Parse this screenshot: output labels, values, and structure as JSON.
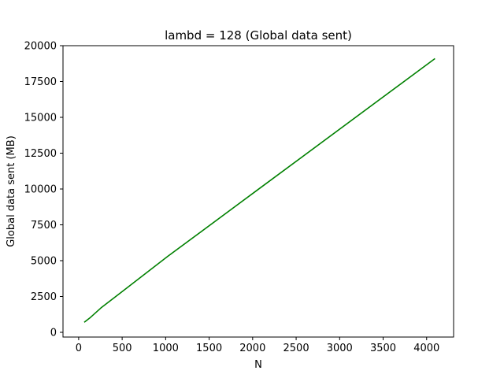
{
  "chart_data": {
    "type": "line",
    "title": "lambd = 128 (Global data sent)",
    "xlabel": "N",
    "ylabel": "Global data sent (MB)",
    "xlim": [
      -180,
      4310
    ],
    "ylim": [
      -330,
      20000
    ],
    "xticks": [
      0,
      500,
      1000,
      1500,
      2000,
      2500,
      3000,
      3500,
      4000
    ],
    "yticks": [
      0,
      2500,
      5000,
      7500,
      10000,
      12500,
      15000,
      17500,
      20000
    ],
    "grid": false,
    "series": [
      {
        "color": "#008000",
        "x": [
          64,
          128,
          256,
          512,
          1024,
          2048,
          4096
        ],
        "y": [
          700,
          1000,
          1700,
          2900,
          5300,
          9900,
          19100
        ]
      }
    ]
  }
}
